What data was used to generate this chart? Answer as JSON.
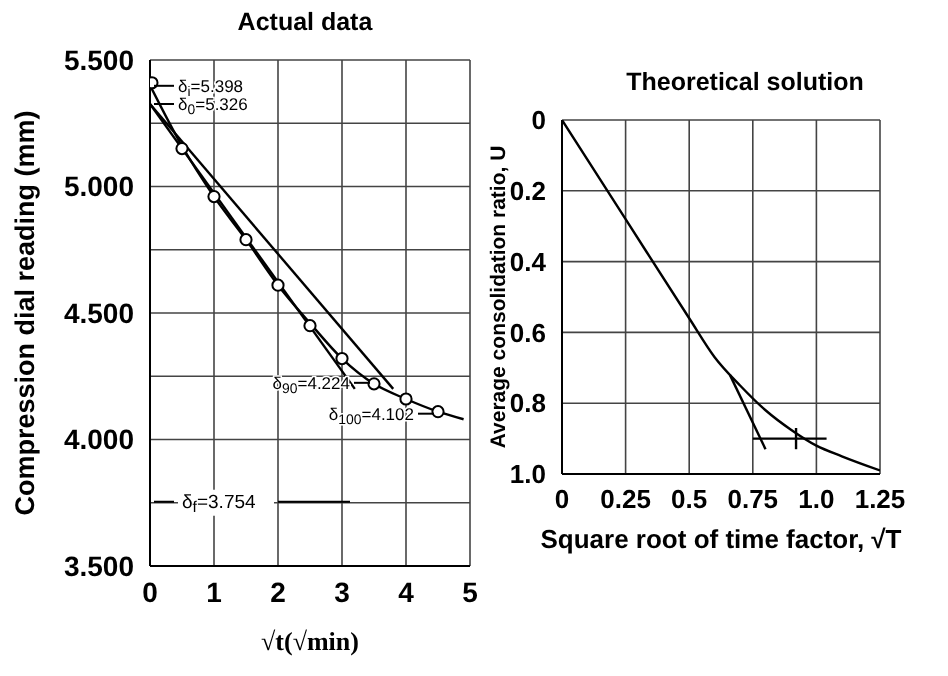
{
  "chart_data": [
    {
      "type": "scatter",
      "title": "Actual data",
      "xlabel": "√t(√min)",
      "ylabel": "Compression dial reading (mm)",
      "xlim": [
        0,
        5
      ],
      "xticks": [
        0,
        1,
        2,
        3,
        4,
        5
      ],
      "ylim": [
        3.5,
        5.5
      ],
      "yticks": [
        {
          "value": 3.5,
          "label": "3.500"
        },
        {
          "value": 3.75,
          "label": null
        },
        {
          "value": 4,
          "label": "4.000"
        },
        {
          "value": 4.25,
          "label": null
        },
        {
          "value": 4.5,
          "label": "4.500"
        },
        {
          "value": 4.75,
          "label": null
        },
        {
          "value": 5,
          "label": "5.000"
        },
        {
          "value": 5.25,
          "label": null
        },
        {
          "value": 5.5,
          "label": "5.500"
        }
      ],
      "grid": true,
      "series": [
        {
          "marker": "circle",
          "color": "#000000",
          "x": [
            0.03,
            0.5,
            1,
            1.5,
            2,
            2.5,
            3,
            3.5,
            4,
            4.5
          ],
          "values": [
            5.41,
            5.15,
            4.96,
            4.79,
            4.61,
            4.45,
            4.32,
            4.22,
            4.16,
            4.11
          ]
        },
        {
          "type": "line",
          "marker": "none",
          "color": "#000000",
          "x": [
            0,
            0.5,
            1,
            1.5,
            2,
            2.5,
            3,
            3.5,
            4,
            4.5,
            4.9
          ],
          "values": [
            5.4,
            5.16,
            4.96,
            4.79,
            4.61,
            4.46,
            4.32,
            4.22,
            4.16,
            4.11,
            4.08
          ]
        },
        {
          "type": "line",
          "marker": "none",
          "color": "#000000",
          "x": [
            0,
            3.2
          ],
          "values": [
            5.326,
            4.2
          ]
        },
        {
          "type": "line",
          "marker": "none",
          "color": "#000000",
          "x": [
            0,
            3.8
          ],
          "values": [
            5.326,
            4.2
          ]
        }
      ],
      "ref_lines": [
        {
          "axis": "y",
          "value": 3.754,
          "label": "δ$_{f}$=3.754"
        }
      ],
      "annotations": [
        {
          "text": "δ$_{i}$=5.398",
          "x": 0,
          "y": 5.398
        },
        {
          "text": "δ$_{0}$=5.326",
          "x": 0,
          "y": 5.326
        },
        {
          "text": "δ$_{90}$=4.224",
          "x": 3.5,
          "y": 4.224
        },
        {
          "text": "δ$_{100}$=4.102",
          "x": 4.5,
          "y": 4.102
        }
      ]
    },
    {
      "type": "line",
      "title": "Theoretical solution",
      "xlabel": "Square root of time factor, √T",
      "ylabel": "Average consolidation ratio, U",
      "xlim": [
        0,
        1.25
      ],
      "xticks": [
        0,
        0.25,
        0.5,
        0.75,
        {
          "value": 1,
          "label": "1.0"
        },
        1.25
      ],
      "ylim": [
        1,
        0
      ],
      "yticks": [
        0,
        0.2,
        0.4,
        0.6,
        0.8,
        {
          "value": 1,
          "label": "1.0"
        }
      ],
      "grid": true,
      "marker": "none",
      "series": [
        {
          "color": "#000000",
          "x": [
            0,
            0.25,
            0.5,
            0.6,
            0.7,
            0.8,
            0.9,
            1,
            1.1,
            1.25
          ],
          "values": [
            0,
            0.28,
            0.56,
            0.67,
            0.75,
            0.82,
            0.875,
            0.92,
            0.95,
            0.99
          ]
        },
        {
          "color": "#000000",
          "x": [
            0.66,
            0.8
          ],
          "values": [
            0.72,
            0.93
          ]
        },
        {
          "color": "#000000",
          "x": [
            0.75,
            1.04
          ],
          "values": [
            0.9,
            0.9
          ]
        },
        {
          "color": "#000000",
          "x": [
            0.92,
            0.92
          ],
          "values": [
            0.87,
            0.93
          ]
        }
      ]
    }
  ]
}
